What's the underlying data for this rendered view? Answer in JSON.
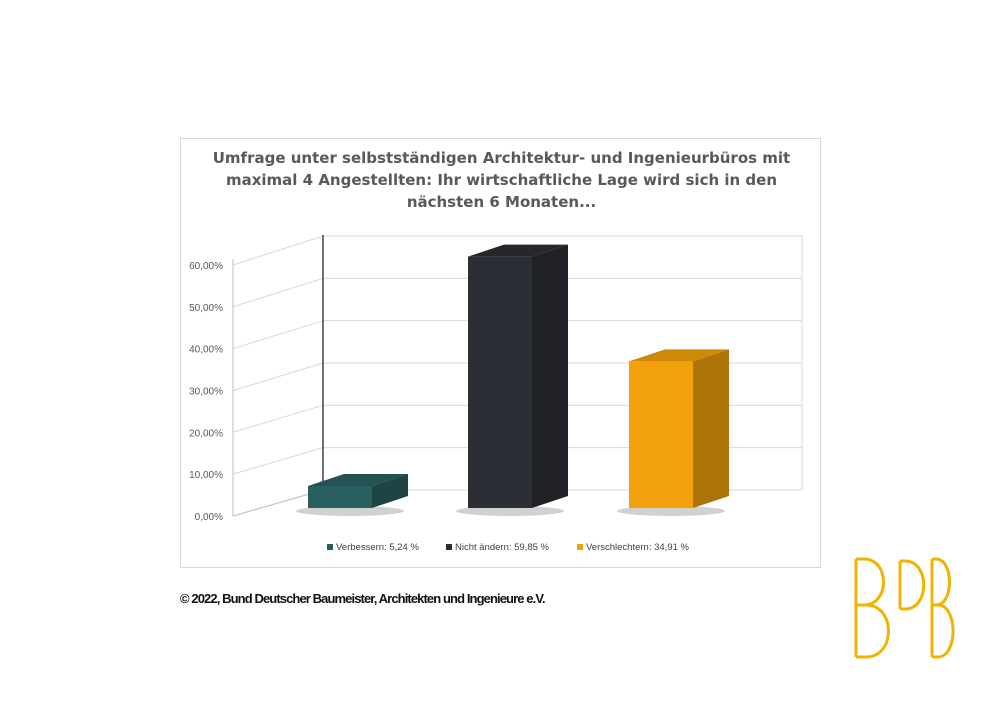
{
  "chart_data": {
    "type": "bar",
    "title": "Umfrage unter selbstständigen Architektur- und Ingenieurbüros mit\nmaximal 4 Angestellten: Ihr wirtschaftliche Lage wird sich in den\nnächsten 6 Monaten...",
    "categories": [
      "Verbessern: 5,24 %",
      "Nicht ändern: 59,85 %",
      "Verschlechtern: 34,91 %"
    ],
    "values": [
      5.24,
      59.85,
      34.91
    ],
    "colors": [
      "#2a5f60",
      "#2b2e35",
      "#f2a10c"
    ],
    "y_ticks": [
      "0,00%",
      "10,00%",
      "20,00%",
      "30,00%",
      "40,00%",
      "50,00%",
      "60,00%"
    ],
    "ylim": [
      0,
      60
    ],
    "grid": true,
    "legend_position": "bottom",
    "style": "3d-column"
  },
  "footer": {
    "copyright": "© 2022, Bund Deutscher Baumeister, Architekten und Ingenieure e.V."
  },
  "logo": {
    "text": "BDB",
    "color": "#f0b400"
  }
}
